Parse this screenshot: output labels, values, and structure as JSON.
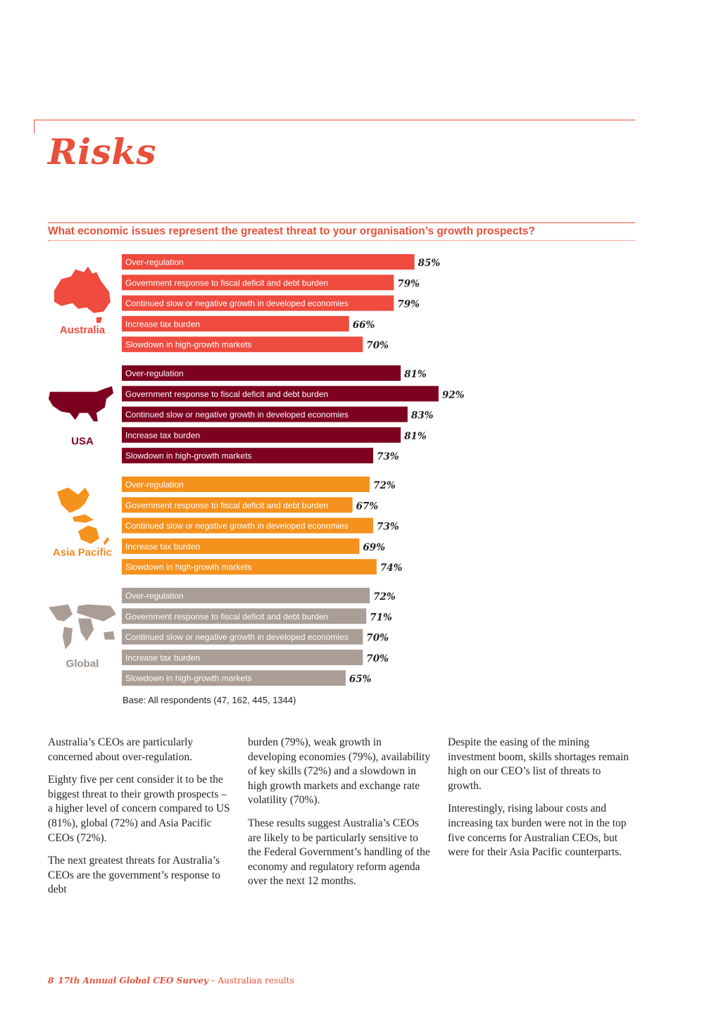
{
  "page": {
    "title": "Risks",
    "question": "What economic issues represent the greatest threat to your organisation’s growth prospects?",
    "base_note": "Base: All respondents (47, 162, 445, 1344)"
  },
  "chart_data": {
    "type": "bar",
    "orientation": "horizontal",
    "value_suffix": "%",
    "xlim": [
      0,
      100
    ],
    "categories": [
      "Over-regulation",
      "Government response to fiscal deficit and debt burden",
      "Continued slow or negative growth in developed economies",
      "Increase tax burden",
      "Slowdown in high-growth markets"
    ],
    "series": [
      {
        "name": "Australia",
        "color": "#ef4b3f",
        "label_color": "#ef4b3f",
        "values": [
          85,
          79,
          79,
          66,
          70
        ],
        "icon": "australia-map-icon"
      },
      {
        "name": "USA",
        "color": "#7d0020",
        "label_color": "#7d0020",
        "values": [
          81,
          92,
          83,
          81,
          73
        ],
        "icon": "usa-map-icon"
      },
      {
        "name": "Asia Pacific",
        "color": "#f5921e",
        "label_color": "#f08a1c",
        "values": [
          72,
          67,
          73,
          69,
          74
        ],
        "icon": "asia-pacific-map-icon"
      },
      {
        "name": "Global",
        "color": "#a99d95",
        "label_color": "#9c9189",
        "values": [
          72,
          71,
          70,
          70,
          65
        ],
        "icon": "world-map-icon"
      }
    ]
  },
  "body": {
    "col1": [
      "Australia’s CEOs are particularly concerned about over-regulation.",
      "Eighty five per cent consider it to be the biggest threat to their growth prospects – a higher level of concern compared to US (81%), global (72%) and Asia Pacific CEOs (72%).",
      "The next greatest threats for Australia’s CEOs are the government’s response to debt"
    ],
    "col2": [
      "burden (79%), weak growth in developing economies (79%), availability of key skills (72%) and a slowdown in high growth markets and exchange rate volatility (70%).",
      "These results suggest Australia’s CEOs are likely to be particularly sensitive to the Federal Government’s handling of the economy and regulatory reform agenda over the next 12 months."
    ],
    "col3": [
      "Despite the easing of the mining investment boom, skills shortages remain high on our CEO’s list of threats to growth.",
      "Interestingly, rising labour costs and increasing tax burden were not in the top five concerns for Australian CEOs, but were for their Asia Pacific counterparts."
    ]
  },
  "footer": {
    "page_number": "8",
    "publication": "17th Annual Global CEO Survey",
    "suffix": " – Australian results"
  }
}
